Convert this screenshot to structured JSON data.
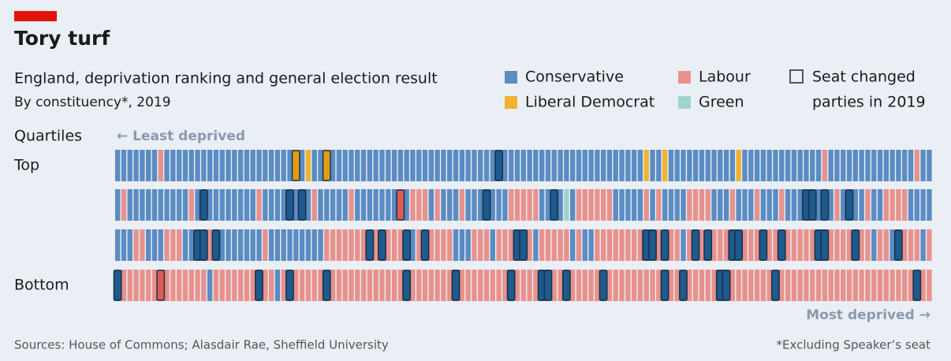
{
  "chart_data": {
    "type": "strip",
    "title": "Tory turf",
    "subtitle": "England, deprivation ranking and general election result",
    "byline": "By constituency*, 2019",
    "legend": [
      {
        "name": "Conservative",
        "color": "#5b8cc3"
      },
      {
        "name": "Labour",
        "color": "#e8928d"
      },
      {
        "name": "Liberal Democrat",
        "color": "#f0b32f"
      },
      {
        "name": "Green",
        "color": "#9fd4cd"
      }
    ],
    "changed_label": [
      "Seat changed",
      "parties in 2019"
    ],
    "rows_title": "Quartiles",
    "left_note": "← Least deprived",
    "right_note": "Most deprived →",
    "source": "Sources: House of Commons; Alasdair Rae, Sheffield University",
    "footnote": "*Excluding Speaker’s seat",
    "rows": [
      {
        "label": "Top",
        "seats": [
          0,
          0,
          0,
          0,
          0,
          0,
          0,
          1,
          0,
          0,
          0,
          0,
          0,
          0,
          0,
          0,
          0,
          0,
          0,
          0,
          0,
          0,
          0,
          0,
          0,
          0,
          0,
          0,
          0,
          2,
          0,
          2,
          0,
          0,
          2,
          0,
          0,
          0,
          0,
          0,
          0,
          0,
          0,
          0,
          0,
          0,
          0,
          0,
          0,
          0,
          0,
          0,
          0,
          0,
          0,
          0,
          0,
          0,
          0,
          0,
          0,
          0,
          0,
          0,
          0,
          0,
          0,
          0,
          0,
          0,
          0,
          0,
          0,
          0,
          0,
          0,
          0,
          0,
          0,
          0,
          0,
          0,
          0,
          0,
          0,
          0,
          2,
          0,
          0,
          2,
          0,
          0,
          0,
          0,
          0,
          0,
          0,
          0,
          0,
          0,
          0,
          2,
          0,
          0,
          0,
          0,
          0,
          0,
          0,
          0,
          0,
          0,
          0,
          0,
          0,
          1,
          0,
          0,
          0,
          0,
          0,
          0,
          0,
          0,
          0,
          0,
          0,
          0,
          0,
          0,
          1,
          0,
          0
        ],
        "changed": [
          29,
          34,
          62
        ]
      },
      {
        "seats": [
          0,
          1,
          0,
          0,
          0,
          0,
          0,
          0,
          0,
          0,
          0,
          0,
          1,
          0,
          0,
          0,
          0,
          0,
          0,
          0,
          0,
          0,
          0,
          1,
          0,
          0,
          0,
          0,
          0,
          0,
          0,
          0,
          1,
          0,
          0,
          0,
          0,
          0,
          1,
          0,
          0,
          0,
          0,
          0,
          0,
          0,
          1,
          0,
          1,
          1,
          1,
          0,
          1,
          0,
          0,
          0,
          1,
          0,
          0,
          0,
          0,
          0,
          0,
          0,
          1,
          1,
          1,
          1,
          1,
          0,
          0,
          0,
          0,
          3,
          0,
          1,
          1,
          1,
          1,
          1,
          1,
          0,
          0,
          0,
          0,
          0,
          1,
          0,
          1,
          0,
          0,
          0,
          0,
          1,
          1,
          1,
          1,
          0,
          0,
          0,
          1,
          0,
          0,
          0,
          1,
          0,
          0,
          0,
          1,
          0,
          0,
          0,
          0,
          0,
          0,
          0,
          0,
          1,
          0,
          0,
          0,
          0,
          1,
          0,
          0,
          1,
          1,
          1,
          1,
          0,
          0,
          0,
          0
        ],
        "changed": [
          14,
          28,
          30,
          46,
          60,
          71,
          112,
          113,
          115,
          119
        ]
      },
      {
        "seats": [
          0,
          0,
          0,
          1,
          1,
          0,
          0,
          0,
          1,
          1,
          1,
          0,
          0,
          0,
          0,
          1,
          0,
          0,
          0,
          0,
          0,
          0,
          0,
          0,
          1,
          0,
          0,
          0,
          0,
          0,
          0,
          0,
          0,
          0,
          1,
          1,
          1,
          1,
          1,
          1,
          1,
          0,
          1,
          0,
          1,
          1,
          1,
          0,
          0,
          1,
          0,
          1,
          1,
          1,
          1,
          0,
          0,
          0,
          1,
          1,
          1,
          0,
          1,
          1,
          1,
          0,
          0,
          1,
          0,
          1,
          1,
          1,
          1,
          1,
          0,
          1,
          0,
          0,
          1,
          1,
          1,
          1,
          1,
          1,
          1,
          1,
          0,
          0,
          1,
          0,
          1,
          1,
          0,
          1,
          0,
          1,
          0,
          1,
          1,
          1,
          0,
          0,
          1,
          1,
          1,
          0,
          1,
          1,
          0,
          1,
          1,
          1,
          1,
          1,
          0,
          0,
          1,
          1,
          1,
          1,
          0,
          1,
          1,
          0,
          1,
          1,
          0,
          0,
          1,
          1,
          1,
          0,
          1
        ],
        "changed": [
          13,
          14,
          16,
          41,
          43,
          47,
          50,
          65,
          66,
          86,
          87,
          89,
          94,
          96,
          100,
          101,
          105,
          108,
          114,
          115,
          120,
          127
        ]
      },
      {
        "label": "Bottom",
        "seats": [
          0,
          1,
          1,
          1,
          1,
          1,
          1,
          1,
          1,
          1,
          1,
          1,
          1,
          1,
          1,
          0,
          1,
          1,
          1,
          1,
          1,
          1,
          1,
          0,
          1,
          1,
          0,
          1,
          0,
          1,
          1,
          1,
          1,
          1,
          0,
          1,
          1,
          1,
          1,
          1,
          1,
          1,
          1,
          1,
          1,
          1,
          1,
          0,
          1,
          1,
          1,
          1,
          1,
          1,
          1,
          0,
          1,
          1,
          1,
          1,
          1,
          1,
          1,
          1,
          0,
          1,
          1,
          1,
          1,
          0,
          0,
          1,
          1,
          0,
          1,
          1,
          1,
          1,
          1,
          0,
          1,
          1,
          1,
          1,
          1,
          1,
          1,
          1,
          1,
          0,
          1,
          1,
          0,
          1,
          1,
          1,
          1,
          1,
          0,
          0,
          1,
          1,
          1,
          1,
          1,
          1,
          1,
          0,
          1,
          1,
          1,
          1,
          1,
          1,
          1,
          1,
          1,
          1,
          1,
          1,
          1,
          1,
          1,
          1,
          1,
          1,
          1,
          1,
          1,
          1,
          0,
          1,
          1
        ],
        "changed": [
          0,
          7,
          23,
          28,
          34,
          47,
          55,
          64,
          69,
          70,
          73,
          79,
          89,
          92,
          98,
          99,
          107,
          130
        ]
      }
    ]
  }
}
